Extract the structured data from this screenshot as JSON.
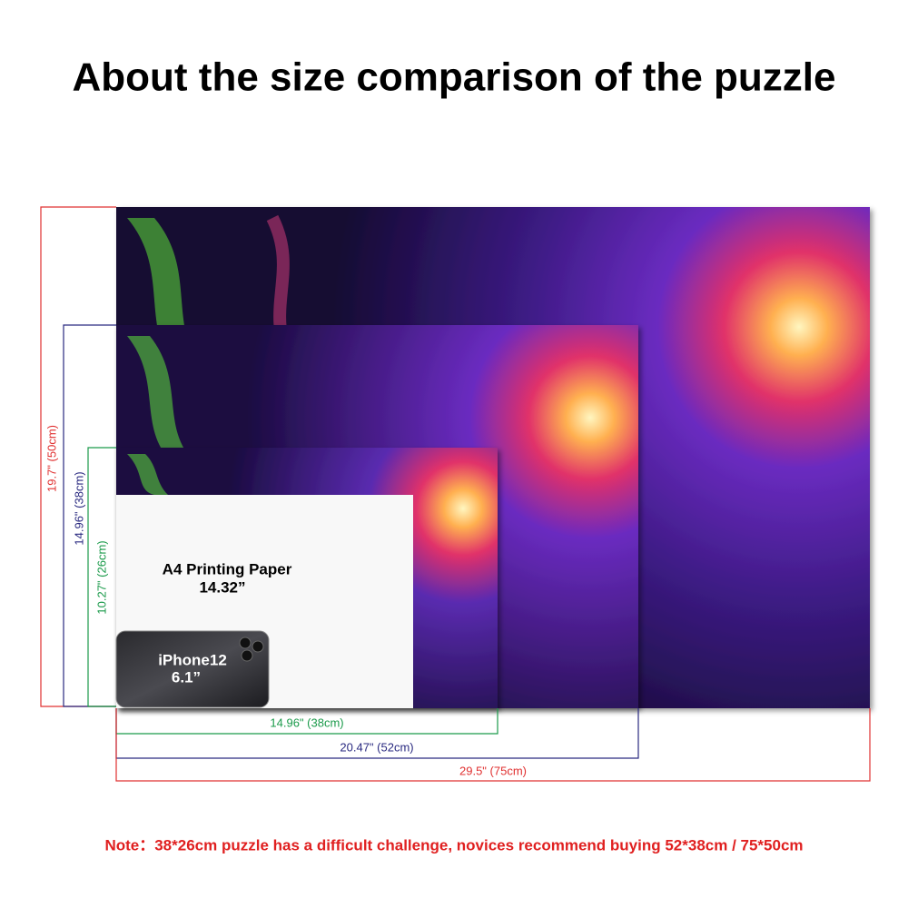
{
  "header": {
    "title": "About the size comparison of the puzzle"
  },
  "heights": [
    "19.7\" (50cm)",
    "14.96\" (38cm)",
    "10.27\" (26cm)"
  ],
  "widths": [
    "14.96\" (38cm)",
    "20.47\" (52cm)",
    "29.5\" (75cm)"
  ],
  "paper": {
    "label": "A4 Printing Paper",
    "size": "14.32”"
  },
  "phone": {
    "label": "iPhone12",
    "size": "6.1”"
  },
  "note": "Note：38*26cm puzzle has a difficult challenge, novices recommend buying 52*38cm / 75*50cm"
}
